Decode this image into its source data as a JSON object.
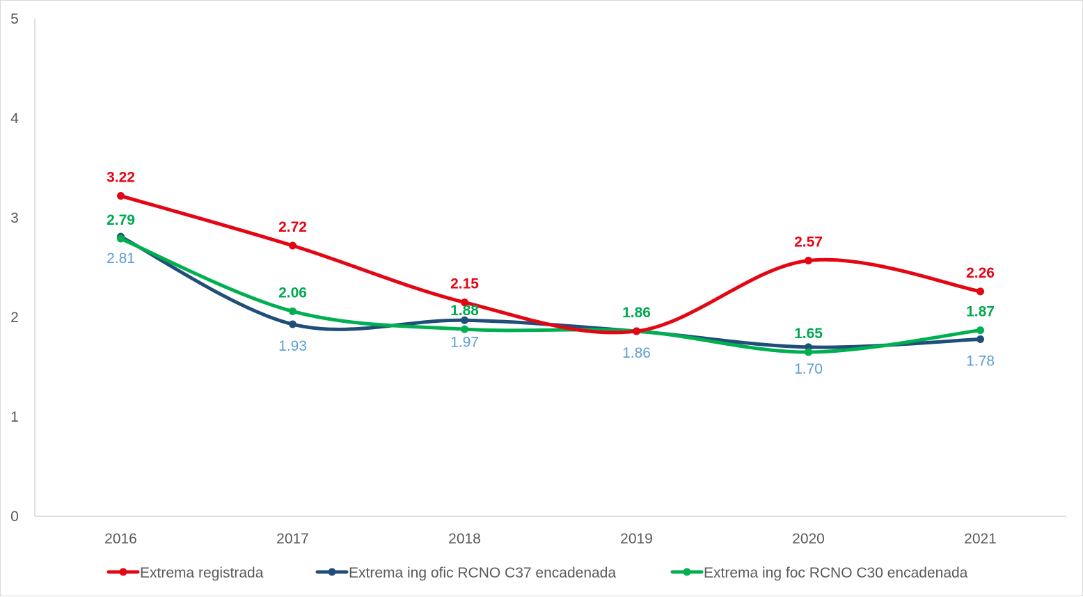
{
  "chart_data": {
    "type": "line",
    "title": "",
    "xlabel": "",
    "ylabel": "",
    "ylim": [
      0,
      5
    ],
    "yticks": [
      "0",
      "1",
      "2",
      "3",
      "4",
      "5"
    ],
    "categories": [
      "2016",
      "2017",
      "2018",
      "2019",
      "2020",
      "2021"
    ],
    "grid": false,
    "legend_position": "bottom",
    "series": [
      {
        "name": "Extrema registrada",
        "color": "#e30613",
        "label_color": "#e30613",
        "label_weight": "bold",
        "label_side": "above",
        "values": [
          3.22,
          2.72,
          2.15,
          1.86,
          2.57,
          2.26
        ],
        "labels": [
          "3.22",
          "2.72",
          "2.15",
          "",
          "2.57",
          "2.26"
        ]
      },
      {
        "name": "Extrema ing ofic RCNO C37 encadenada",
        "color": "#1f4e79",
        "label_color": "#5b9bd5",
        "label_weight": "normal",
        "label_side": "below",
        "values": [
          2.81,
          1.93,
          1.97,
          1.86,
          1.7,
          1.78
        ],
        "labels": [
          "2.81",
          "1.93",
          "1.97",
          "1.86",
          "1.70",
          "1.78"
        ]
      },
      {
        "name": "Extrema ing foc RCNO C30 encadenada",
        "color": "#00b050",
        "label_color": "#00a84f",
        "label_weight": "bold",
        "label_side": "above",
        "values": [
          2.79,
          2.06,
          1.88,
          1.86,
          1.65,
          1.87
        ],
        "labels": [
          "2.79",
          "2.06",
          "1.88",
          "1.86",
          "1.65",
          "1.87"
        ]
      }
    ]
  }
}
